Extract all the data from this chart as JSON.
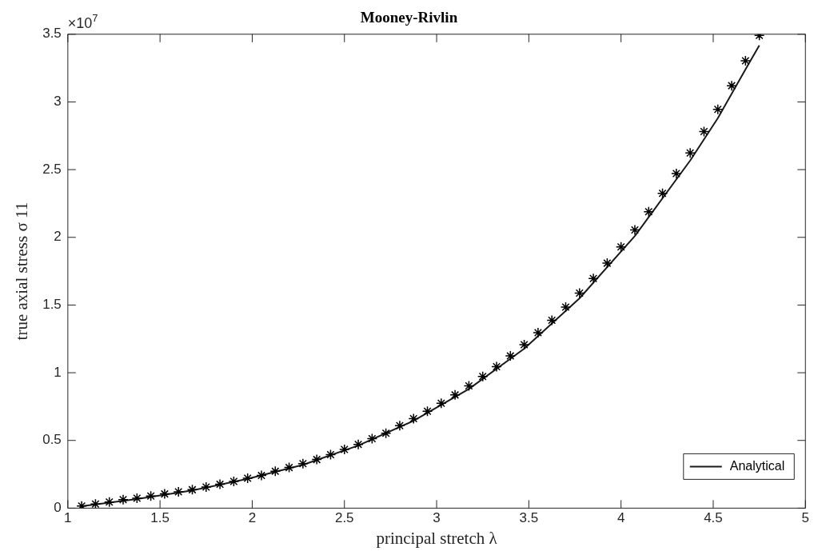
{
  "chart_data": {
    "type": "scatter",
    "title": "Mooney-Rivlin",
    "xlabel": "principal stretch λ",
    "ylabel": "true axial stress σ 11",
    "annotations": [
      "×10$^{7}$"
    ],
    "series": [
      {
        "type": "scatter",
        "color": "#000000",
        "marker": "cross",
        "x": [
          1.075,
          1.15,
          1.225,
          1.3,
          1.375,
          1.45,
          1.525,
          1.6,
          1.675,
          1.75,
          1.825,
          1.9,
          1.975,
          2.05,
          2.125,
          2.2,
          2.275,
          2.35,
          2.425,
          2.5,
          2.575,
          2.65,
          2.725,
          2.8,
          2.875,
          2.95,
          3.025,
          3.1,
          3.175,
          3.25,
          3.325,
          3.4,
          3.475,
          3.55,
          3.625,
          3.7,
          3.775,
          3.85,
          3.925,
          4.0,
          4.075,
          4.15,
          4.225,
          4.3,
          4.375,
          4.45,
          4.525,
          4.6,
          4.675,
          4.75
        ],
        "values": [
          0.016,
          0.03,
          0.045,
          0.063,
          0.073,
          0.089,
          0.105,
          0.12,
          0.136,
          0.156,
          0.176,
          0.197,
          0.221,
          0.241,
          0.272,
          0.3,
          0.329,
          0.359,
          0.395,
          0.434,
          0.471,
          0.513,
          0.553,
          0.609,
          0.661,
          0.716,
          0.775,
          0.836,
          0.903,
          0.972,
          1.045,
          1.124,
          1.207,
          1.296,
          1.387,
          1.485,
          1.588,
          1.696,
          1.809,
          1.929,
          2.055,
          2.189,
          2.325,
          2.471,
          2.623,
          2.781,
          2.945,
          3.12,
          3.304,
          3.491
        ]
      },
      {
        "type": "line",
        "name": "Analytical",
        "color": "#1a1a1a",
        "marker": "none",
        "line_style": "solid",
        "x": [
          1.075,
          1.375,
          1.675,
          1.975,
          2.275,
          2.575,
          2.875,
          3.175,
          3.475,
          3.775,
          4.075,
          4.375,
          4.525,
          4.675,
          4.75
        ],
        "values": [
          0.014,
          0.068,
          0.131,
          0.216,
          0.32,
          0.462,
          0.645,
          0.88,
          1.178,
          1.55,
          2.01,
          2.567,
          2.88,
          3.24,
          3.418
        ]
      }
    ],
    "xlim": [
      1,
      5
    ],
    "xticks": [
      1,
      1.5,
      2,
      2.5,
      3,
      3.5,
      4,
      4.5,
      5
    ],
    "ylim": [
      0,
      3.5
    ],
    "yticks": [
      0,
      0.5,
      1,
      1.5,
      2,
      2.5,
      3,
      3.5
    ],
    "grid": false,
    "legend": "bottom right"
  }
}
